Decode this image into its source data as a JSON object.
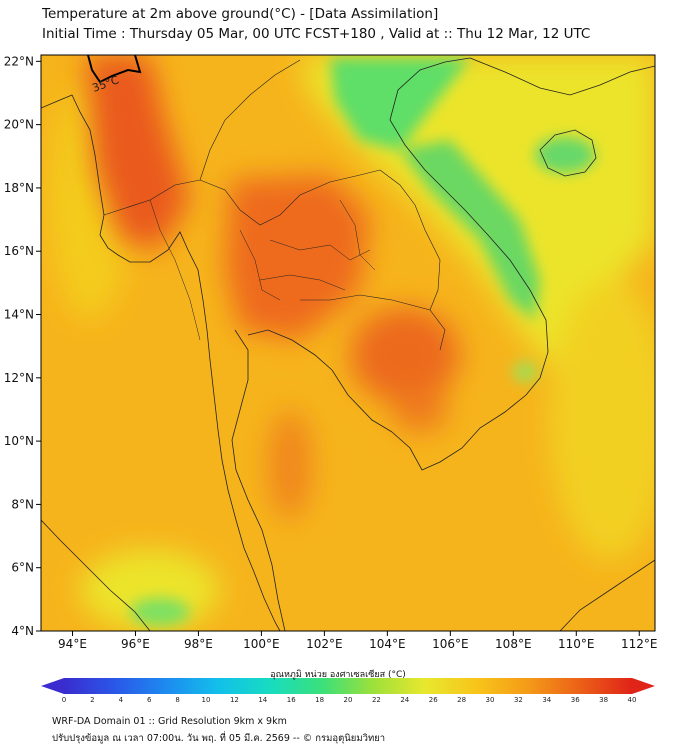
{
  "header": {
    "title": "Temperature at 2m above ground(°C) - [Data Assimilation]",
    "subtitle": "Initial Time : Thursday 05 Mar, 00 UTC FCST+180 , Valid at :: Thu 12 Mar, 12 UTC"
  },
  "map": {
    "lon_range": [
      93,
      112.5
    ],
    "lat_range": [
      4,
      22.2
    ],
    "lon_ticks": [
      "94°E",
      "96°E",
      "98°E",
      "100°E",
      "102°E",
      "104°E",
      "106°E",
      "108°E",
      "110°E",
      "112°E"
    ],
    "lon_values": [
      94,
      96,
      98,
      100,
      102,
      104,
      106,
      108,
      110,
      112
    ],
    "lat_ticks": [
      "22°N",
      "20°N",
      "18°N",
      "16°N",
      "14°N",
      "12°N",
      "10°N",
      "8°N",
      "6°N",
      "4°N"
    ],
    "lat_values": [
      22,
      20,
      18,
      16,
      14,
      12,
      10,
      8,
      6,
      4
    ],
    "contour_label": "35°C",
    "colors": {
      "cool": "#34e07a",
      "mild": "#f0e62e",
      "warm": "#f8b018",
      "hot": "#ee5e1c"
    }
  },
  "colorbar": {
    "label": "อุณหภูมิ หน่วย องศาเซลเซียส (°C)",
    "min": 0,
    "max": 40,
    "ticks": [
      "0",
      "2",
      "4",
      "6",
      "8",
      "10",
      "12",
      "14",
      "16",
      "18",
      "20",
      "22",
      "24",
      "26",
      "28",
      "30",
      "32",
      "34",
      "36",
      "38",
      "40"
    ],
    "tick_values": [
      0,
      2,
      4,
      6,
      8,
      10,
      12,
      14,
      16,
      18,
      20,
      22,
      24,
      26,
      28,
      30,
      32,
      34,
      36,
      38,
      40
    ],
    "colors": [
      "#3a2ccf",
      "#2a58e8",
      "#1d8cf0",
      "#12c0ea",
      "#18dcc0",
      "#3ae07a",
      "#9ee03a",
      "#e8e82e",
      "#f8c41a",
      "#f49a18",
      "#ec6018",
      "#e02418"
    ]
  },
  "footer": {
    "line1": "WRF-DA Domain 01 :: Grid Resolution 9km x 9km",
    "line2": "ปรับปรุงข้อมูล ณ เวลา 07:00น. วัน พฤ. ที่ 05 มี.ค. 2569 -- © กรมอุตุนิยมวิทยา"
  }
}
